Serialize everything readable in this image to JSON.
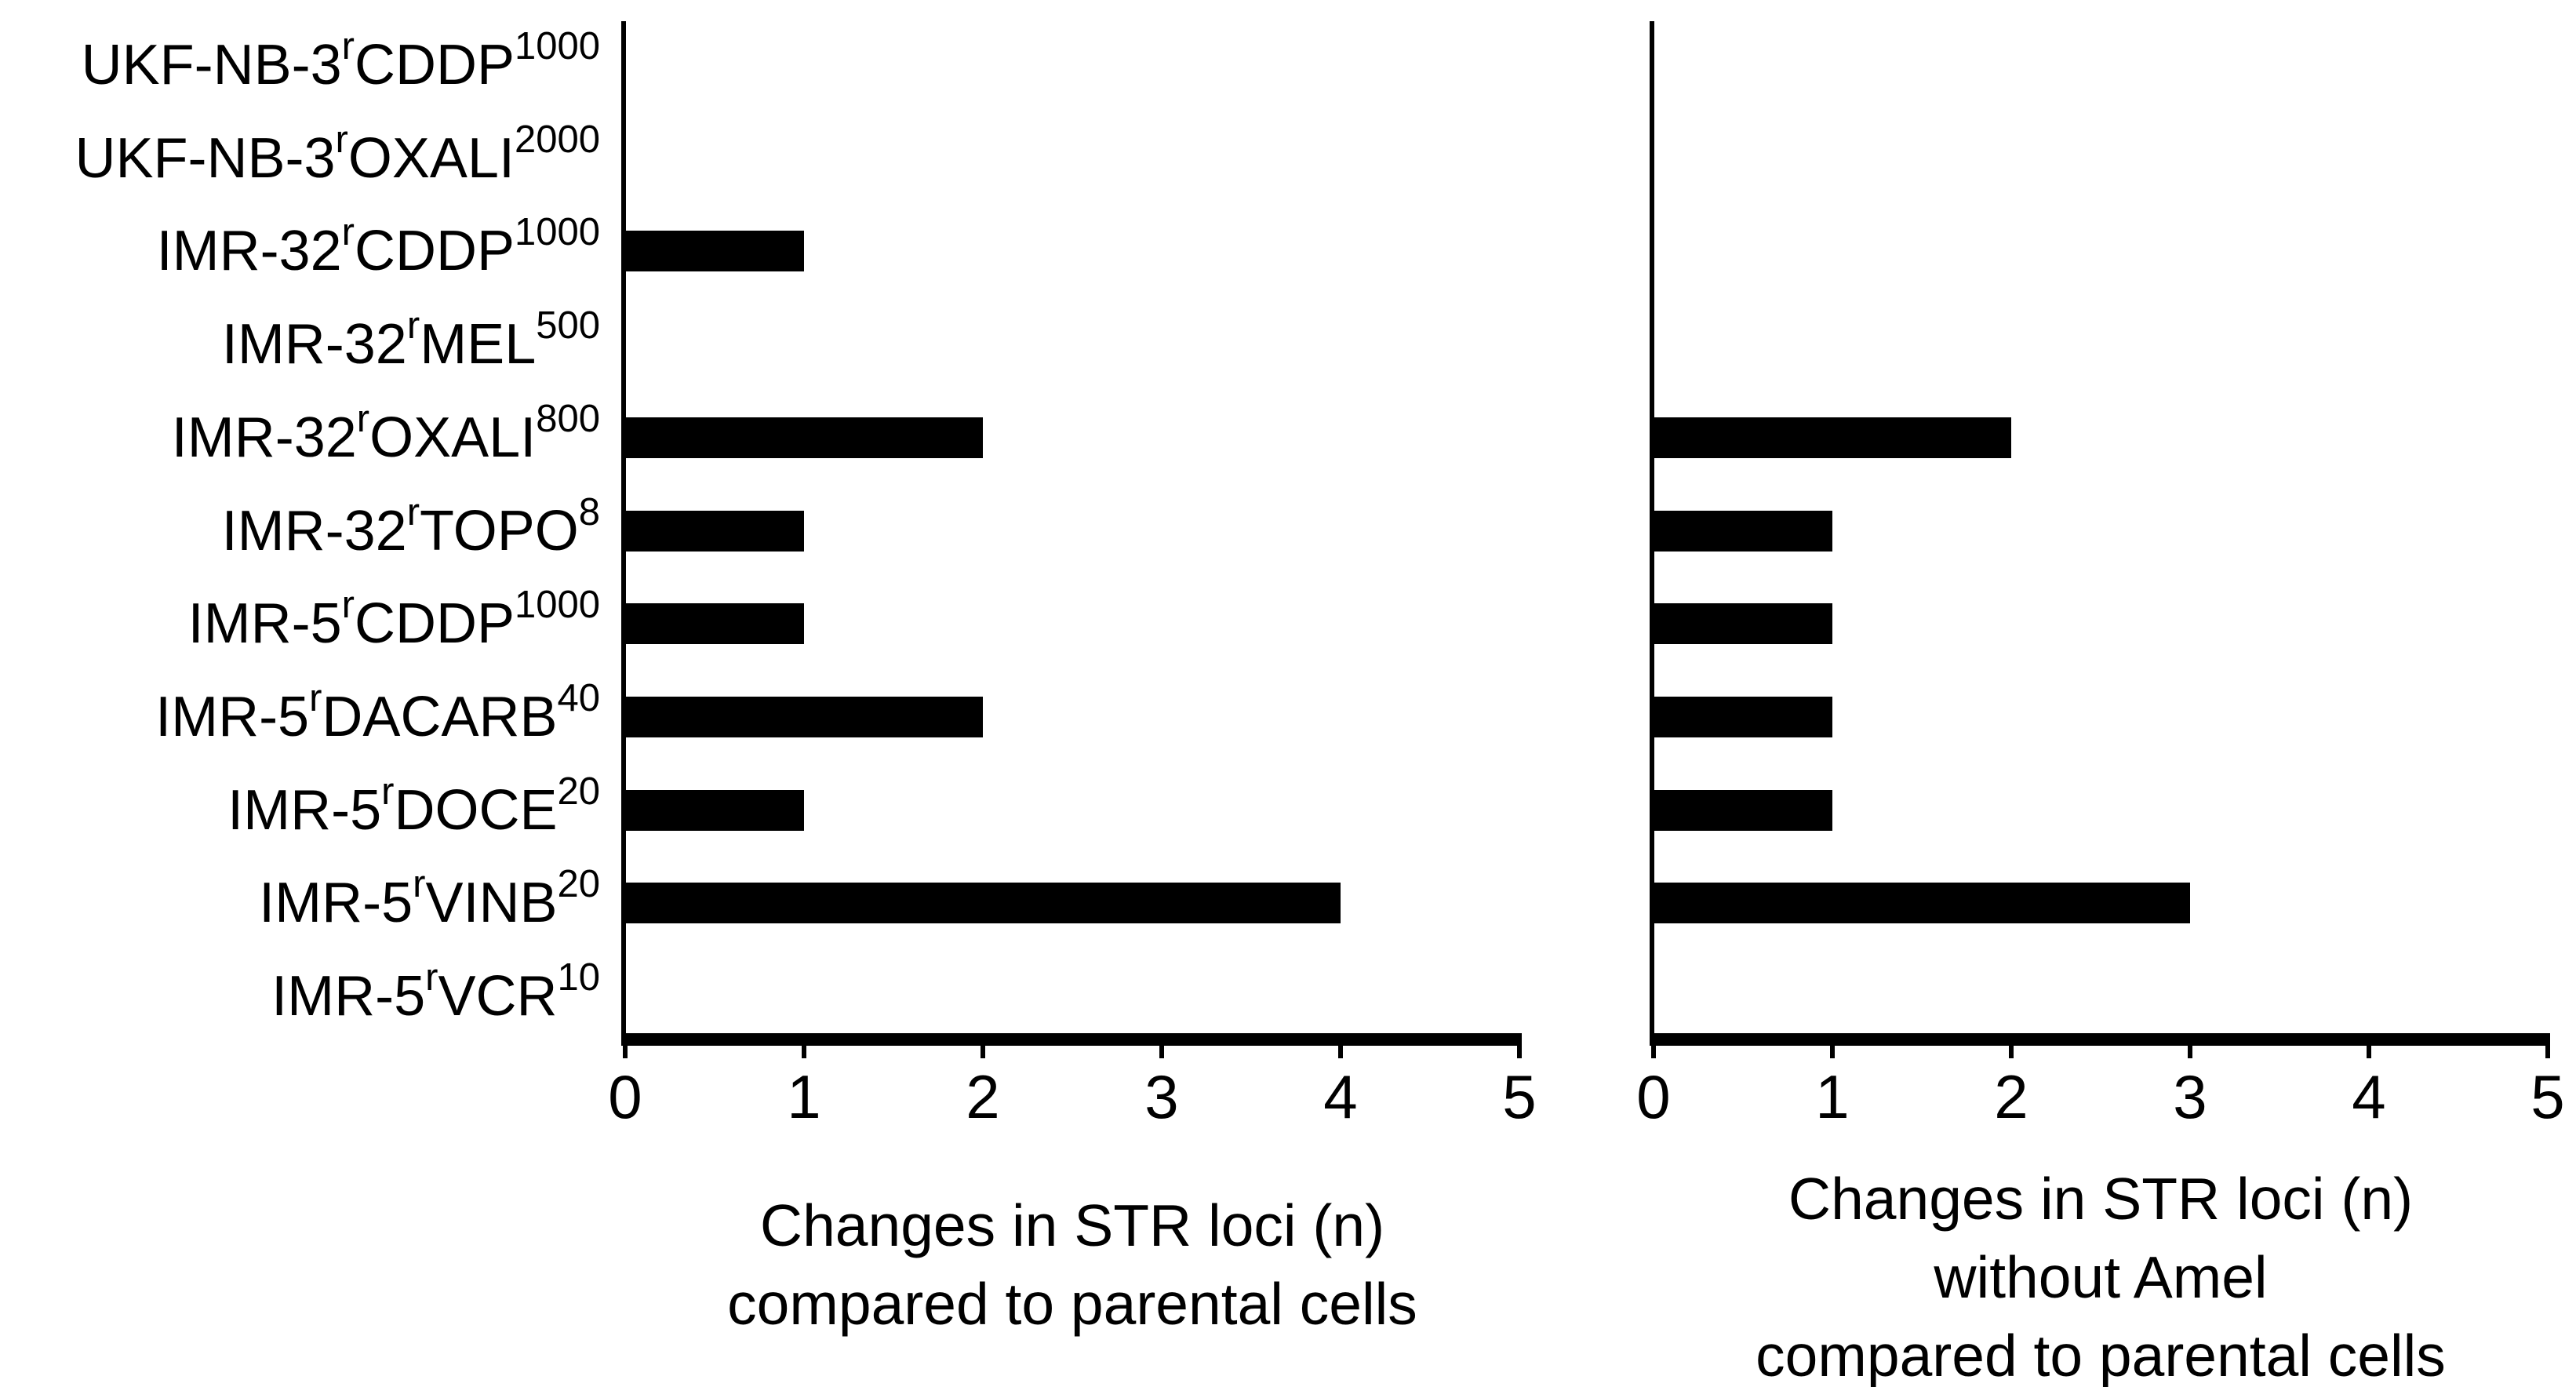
{
  "figure": {
    "background_color": "#ffffff",
    "bar_color": "#000000",
    "text_color": "#000000"
  },
  "categories": [
    {
      "base": "UKF-NB-3",
      "sup_r": "r",
      "drug": "CDDP",
      "dose": "1000"
    },
    {
      "base": "UKF-NB-3",
      "sup_r": "r",
      "drug": "OXALI",
      "dose": "2000"
    },
    {
      "base": "IMR-32",
      "sup_r": "r",
      "drug": "CDDP",
      "dose": "1000"
    },
    {
      "base": "IMR-32",
      "sup_r": "r",
      "drug": "MEL",
      "dose": "500"
    },
    {
      "base": "IMR-32",
      "sup_r": "r",
      "drug": "OXALI",
      "dose": "800"
    },
    {
      "base": "IMR-32",
      "sup_r": "r",
      "drug": "TOPO",
      "dose": "8"
    },
    {
      "base": "IMR-5",
      "sup_r": "r",
      "drug": "CDDP",
      "dose": "1000"
    },
    {
      "base": "IMR-5",
      "sup_r": "r",
      "drug": "DACARB",
      "dose": "40"
    },
    {
      "base": "IMR-5",
      "sup_r": "r",
      "drug": "DOCE",
      "dose": "20"
    },
    {
      "base": "IMR-5",
      "sup_r": "r",
      "drug": "VINB",
      "dose": "20"
    },
    {
      "base": "IMR-5",
      "sup_r": "r",
      "drug": "VCR",
      "dose": "10"
    }
  ],
  "chart_data": [
    {
      "type": "bar",
      "orientation": "horizontal",
      "categories": [
        "UKF-NB-3rCDDP1000",
        "UKF-NB-3rOXALI2000",
        "IMR-32rCDDP1000",
        "IMR-32rMEL500",
        "IMR-32rOXALI800",
        "IMR-32rTOPO8",
        "IMR-5rCDDP1000",
        "IMR-5rDACARB40",
        "IMR-5rDOCE20",
        "IMR-5rVINB20",
        "IMR-5rVCR10"
      ],
      "values": [
        0,
        0,
        1,
        0,
        2,
        1,
        1,
        2,
        1,
        4,
        0
      ],
      "xlim": [
        0,
        5
      ],
      "xticks": [
        "0",
        "1",
        "2",
        "3",
        "4",
        "5"
      ],
      "xlabel_lines": [
        "Changes in STR loci (n)",
        "compared to parental cells"
      ],
      "grid": false,
      "legend": false,
      "bar_color": "#000000"
    },
    {
      "type": "bar",
      "orientation": "horizontal",
      "categories": [
        "UKF-NB-3rCDDP1000",
        "UKF-NB-3rOXALI2000",
        "IMR-32rCDDP1000",
        "IMR-32rMEL500",
        "IMR-32rOXALI800",
        "IMR-32rTOPO8",
        "IMR-5rCDDP1000",
        "IMR-5rDACARB40",
        "IMR-5rDOCE20",
        "IMR-5rVINB20",
        "IMR-5rVCR10"
      ],
      "values": [
        0,
        0,
        0,
        0,
        2,
        1,
        1,
        1,
        1,
        3,
        0
      ],
      "xlim": [
        0,
        5
      ],
      "xticks": [
        "0",
        "1",
        "2",
        "3",
        "4",
        "5"
      ],
      "xlabel_lines": [
        "Changes in STR loci (n)",
        "without Amel",
        "compared to parental cells"
      ],
      "grid": false,
      "legend": false,
      "bar_color": "#000000"
    }
  ]
}
